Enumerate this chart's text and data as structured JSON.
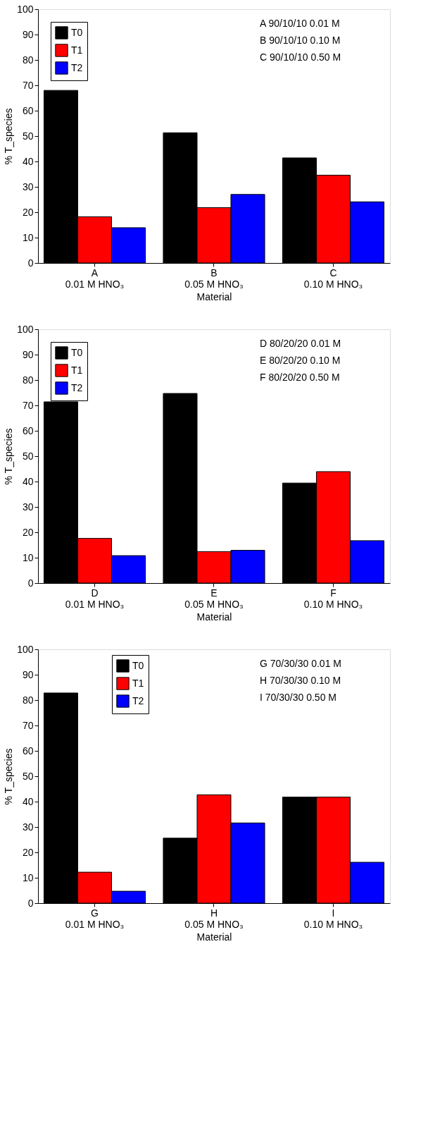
{
  "chart_data": [
    {
      "type": "bar",
      "categories": [
        "A\n0.01 M HNO₃",
        "B\n0.05 M HNO₃",
        "C\n0.10 M HNO₃"
      ],
      "xlabel": "Material",
      "ylabel": "% T_species",
      "ylim": [
        0,
        100
      ],
      "yticks": [
        0,
        10,
        20,
        30,
        40,
        50,
        60,
        70,
        80,
        90,
        100
      ],
      "legend": "top left",
      "series": [
        {
          "name": "T0",
          "color": "#000000",
          "values": [
            68.0,
            51.3,
            41.4
          ]
        },
        {
          "name": "T1",
          "color": "#ff0000",
          "values": [
            18.2,
            21.8,
            34.6
          ]
        },
        {
          "name": "T2",
          "color": "#0000ff",
          "values": [
            13.9,
            27.0,
            24.1
          ]
        }
      ],
      "annotations": [
        "A 90/10/10 0.01 M",
        "B 90/10/10 0.10 M",
        "C 90/10/10 0.50 M"
      ]
    },
    {
      "type": "bar",
      "categories": [
        "D\n0.01 M HNO₃",
        "E\n0.05 M HNO₃",
        "F\n0.10 M HNO₃"
      ],
      "xlabel": "Material",
      "ylabel": "% T_species",
      "ylim": [
        0,
        100
      ],
      "yticks": [
        0,
        10,
        20,
        30,
        40,
        50,
        60,
        70,
        80,
        90,
        100
      ],
      "legend": "top left",
      "series": [
        {
          "name": "T0",
          "color": "#000000",
          "values": [
            71.4,
            74.7,
            39.4
          ]
        },
        {
          "name": "T1",
          "color": "#ff0000",
          "values": [
            17.6,
            12.4,
            43.9
          ]
        },
        {
          "name": "T2",
          "color": "#0000ff",
          "values": [
            10.8,
            12.9,
            16.7
          ]
        }
      ],
      "annotations": [
        "D 80/20/20 0.01 M",
        "E 80/20/20 0.10 M",
        "F 80/20/20 0.50 M"
      ]
    },
    {
      "type": "bar",
      "categories": [
        "G\n0.01 M HNO₃",
        "H\n0.05 M HNO₃",
        "I\n0.10 M HNO₃"
      ],
      "xlabel": "Material",
      "ylabel": "% T_species",
      "ylim": [
        0,
        100
      ],
      "yticks": [
        0,
        10,
        20,
        30,
        40,
        50,
        60,
        70,
        80,
        90,
        100
      ],
      "legend": "top",
      "series": [
        {
          "name": "T0",
          "color": "#000000",
          "values": [
            82.8,
            25.6,
            41.8
          ]
        },
        {
          "name": "T1",
          "color": "#ff0000",
          "values": [
            12.2,
            42.7,
            41.8
          ]
        },
        {
          "name": "T2",
          "color": "#0000ff",
          "values": [
            4.7,
            31.6,
            16.1
          ]
        }
      ],
      "annotations": [
        "G 70/30/30 0.01 M",
        "H 70/30/30 0.10 M",
        "I 70/30/30 0.50 M"
      ]
    }
  ]
}
